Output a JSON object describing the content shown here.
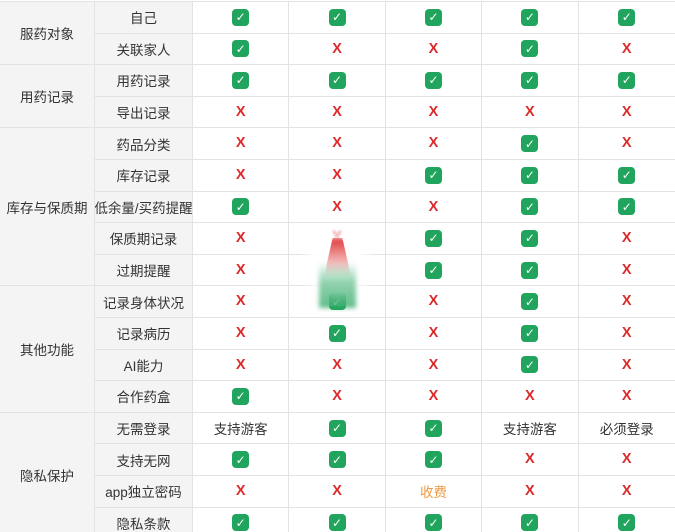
{
  "table": {
    "marks": {
      "check_symbol": "✓",
      "cross_symbol": "X"
    },
    "colors": {
      "check_green": "#21a45e",
      "cross_red": "#dc2a2a",
      "fee_orange": "#ee9a45",
      "group_header_bg": "#f4f4f5",
      "border": "#e3e3e3"
    },
    "app_columns_count": 5,
    "groups": [
      {
        "category": "服药对象",
        "rows": [
          {
            "feature": "自己",
            "cells": [
              "check",
              "check",
              "check",
              "check",
              "check"
            ]
          },
          {
            "feature": "关联家人",
            "cells": [
              "check",
              "cross",
              "cross",
              "check",
              "cross"
            ]
          }
        ]
      },
      {
        "category": "用药记录",
        "rows": [
          {
            "feature": "用药记录",
            "cells": [
              "check",
              "check",
              "check",
              "check",
              "check"
            ]
          },
          {
            "feature": "导出记录",
            "cells": [
              "cross",
              "cross",
              "cross",
              "cross",
              "cross"
            ]
          }
        ]
      },
      {
        "category": "库存与保质期",
        "rows": [
          {
            "feature": "药品分类",
            "cells": [
              "cross",
              "cross",
              "cross",
              "check",
              "cross"
            ]
          },
          {
            "feature": "库存记录",
            "cells": [
              "cross",
              "cross",
              "check",
              "check",
              "check"
            ]
          },
          {
            "feature": "低余量/买药提醒",
            "cells": [
              "check",
              "cross",
              "cross",
              "check",
              "check"
            ]
          },
          {
            "feature": "保质期记录",
            "cells": [
              "cross",
              "cross_blur",
              "check",
              "check",
              "cross"
            ]
          },
          {
            "feature": "过期提醒",
            "cells": [
              "cross",
              "blur",
              "check",
              "check",
              "cross"
            ]
          }
        ]
      },
      {
        "category": "其他功能",
        "rows": [
          {
            "feature": "记录身体状况",
            "cells": [
              "cross",
              "check",
              "cross",
              "check",
              "cross"
            ]
          },
          {
            "feature": "记录病历",
            "cells": [
              "cross",
              "check",
              "cross",
              "check",
              "cross"
            ]
          },
          {
            "feature": "AI能力",
            "cells": [
              "cross",
              "cross",
              "cross",
              "check",
              "cross"
            ]
          },
          {
            "feature": "合作药盒",
            "cells": [
              "check",
              "cross",
              "cross",
              "cross",
              "cross"
            ]
          }
        ]
      },
      {
        "category": "隐私保护",
        "rows": [
          {
            "feature": "无需登录",
            "cells": [
              {
                "text": "支持游客"
              },
              "check",
              "check",
              {
                "text": "支持游客"
              },
              {
                "text": "必须登录"
              }
            ]
          },
          {
            "feature": "支持无网",
            "cells": [
              "check",
              "check",
              "check",
              "cross",
              "cross"
            ]
          },
          {
            "feature": "app独立密码",
            "cells": [
              "cross",
              "cross",
              {
                "text": "收费",
                "color": "#ee9a45"
              },
              "cross",
              "cross"
            ]
          },
          {
            "feature": "隐私条款",
            "cells": [
              "check",
              "check",
              "check",
              "check",
              "check"
            ]
          }
        ]
      }
    ]
  }
}
